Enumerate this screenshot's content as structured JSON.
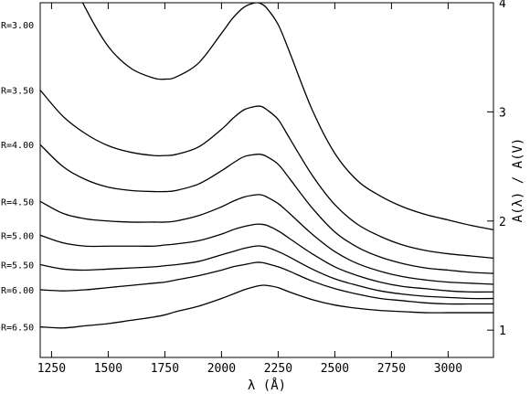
{
  "chart_data": {
    "type": "line",
    "xlabel": "λ (Å)",
    "ylabel": "A(λ) / A(V)",
    "xlim": [
      1200,
      3200
    ],
    "ylim": [
      0.75,
      4.0
    ],
    "x_ticks": [
      1250,
      1500,
      1750,
      2000,
      2250,
      2500,
      2750,
      3000
    ],
    "y_ticks": [
      1,
      2,
      3,
      4
    ],
    "y_axis_side": "right",
    "grid": false,
    "legend": "none",
    "line_color": "#000000",
    "x": [
      1200,
      1300,
      1400,
      1500,
      1600,
      1700,
      1750,
      1800,
      1900,
      2000,
      2050,
      2100,
      2150,
      2175,
      2200,
      2250,
      2300,
      2400,
      2500,
      2600,
      2700,
      2800,
      2900,
      3000,
      3100,
      3200
    ],
    "series": [
      {
        "name": "R=3.00",
        "values": [
          5.1,
          4.4,
          3.95,
          3.6,
          3.4,
          3.31,
          3.3,
          3.32,
          3.45,
          3.72,
          3.86,
          3.96,
          4.0,
          3.99,
          3.95,
          3.8,
          3.55,
          3.02,
          2.62,
          2.37,
          2.23,
          2.13,
          2.06,
          2.01,
          1.96,
          1.92
        ]
      },
      {
        "name": "R=3.50",
        "values": [
          3.2,
          2.96,
          2.8,
          2.69,
          2.63,
          2.6,
          2.6,
          2.61,
          2.68,
          2.84,
          2.94,
          3.02,
          3.05,
          3.05,
          3.02,
          2.93,
          2.76,
          2.42,
          2.15,
          1.97,
          1.86,
          1.78,
          1.73,
          1.7,
          1.68,
          1.66
        ]
      },
      {
        "name": "R=4.00",
        "values": [
          2.7,
          2.5,
          2.38,
          2.31,
          2.28,
          2.27,
          2.27,
          2.28,
          2.34,
          2.46,
          2.53,
          2.59,
          2.61,
          2.61,
          2.59,
          2.52,
          2.39,
          2.12,
          1.9,
          1.76,
          1.67,
          1.61,
          1.57,
          1.55,
          1.53,
          1.52
        ]
      },
      {
        "name": "R=4.50",
        "values": [
          2.18,
          2.07,
          2.02,
          2.0,
          1.99,
          1.99,
          1.99,
          2.0,
          2.05,
          2.13,
          2.18,
          2.22,
          2.24,
          2.24,
          2.22,
          2.16,
          2.07,
          1.88,
          1.72,
          1.61,
          1.54,
          1.49,
          1.46,
          1.44,
          1.43,
          1.42
        ]
      },
      {
        "name": "R=5.00",
        "values": [
          1.87,
          1.8,
          1.77,
          1.77,
          1.77,
          1.77,
          1.78,
          1.79,
          1.82,
          1.88,
          1.92,
          1.95,
          1.97,
          1.97,
          1.96,
          1.91,
          1.84,
          1.7,
          1.58,
          1.5,
          1.44,
          1.4,
          1.38,
          1.36,
          1.35,
          1.35
        ]
      },
      {
        "name": "R=5.50",
        "values": [
          1.6,
          1.56,
          1.55,
          1.56,
          1.57,
          1.58,
          1.59,
          1.6,
          1.63,
          1.69,
          1.72,
          1.75,
          1.77,
          1.77,
          1.76,
          1.72,
          1.67,
          1.56,
          1.47,
          1.41,
          1.36,
          1.33,
          1.31,
          1.3,
          1.29,
          1.29
        ]
      },
      {
        "name": "R=6.00",
        "values": [
          1.37,
          1.36,
          1.37,
          1.39,
          1.41,
          1.43,
          1.44,
          1.46,
          1.5,
          1.55,
          1.58,
          1.6,
          1.62,
          1.62,
          1.61,
          1.58,
          1.54,
          1.45,
          1.38,
          1.33,
          1.29,
          1.27,
          1.25,
          1.24,
          1.24,
          1.24
        ]
      },
      {
        "name": "R=6.50",
        "values": [
          1.03,
          1.02,
          1.04,
          1.06,
          1.09,
          1.12,
          1.14,
          1.17,
          1.22,
          1.29,
          1.33,
          1.37,
          1.4,
          1.41,
          1.41,
          1.39,
          1.35,
          1.28,
          1.23,
          1.2,
          1.18,
          1.17,
          1.16,
          1.16,
          1.16,
          1.16
        ]
      }
    ]
  }
}
